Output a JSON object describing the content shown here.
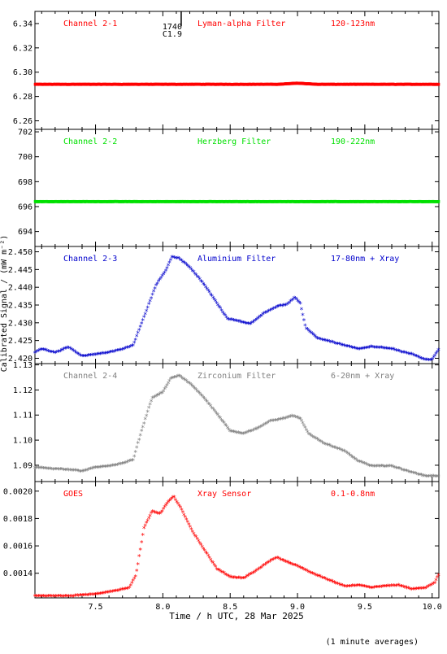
{
  "xlabel": "Time / h UTC, 28 Mar 2025",
  "ylabel": "Calibrated Signal / (mW m⁻²)",
  "footnote": "(1 minute averages)",
  "flare_marker": {
    "time": "1740",
    "class": "C1.9",
    "x": 8.1
  },
  "colors": {
    "red": "#ff0000",
    "green": "#00e000",
    "blue": "#0000cc",
    "grey": "#808080"
  },
  "chart_data": {
    "type": "scatter",
    "x_range": [
      7.05,
      10.05
    ],
    "x_ticks": [
      7.5,
      8.0,
      8.5,
      9.0,
      9.5,
      10.0
    ],
    "x_tick_labels": [
      "7.5",
      "8.0",
      "8.5",
      "9.0",
      "9.5",
      "10.0"
    ],
    "panels": [
      {
        "key": "p1",
        "channel": "Channel 2-1",
        "filter": "Lyman-alpha Filter",
        "band": "120-123nm",
        "color": "#ff0000",
        "ylim": [
          6.253,
          6.35
        ],
        "y_ticks": [
          6.26,
          6.28,
          6.3,
          6.32,
          6.34
        ],
        "y_tick_labels": [
          "6.26",
          "6.28",
          "6.30",
          "6.32",
          "6.34"
        ],
        "points": [
          [
            7.05,
            6.29
          ],
          [
            7.5,
            6.29
          ],
          [
            8.0,
            6.29
          ],
          [
            8.5,
            6.29
          ],
          [
            8.85,
            6.29
          ],
          [
            9.0,
            6.291
          ],
          [
            9.15,
            6.29
          ],
          [
            9.5,
            6.29
          ],
          [
            10.05,
            6.29
          ]
        ]
      },
      {
        "key": "p2",
        "channel": "Channel 2-2",
        "filter": "Herzberg Filter",
        "band": "190-222nm",
        "color": "#00e000",
        "ylim": [
          692.8,
          702.2
        ],
        "y_ticks": [
          694,
          696,
          698,
          700,
          702
        ],
        "y_tick_labels": [
          "694",
          "696",
          "698",
          "700",
          "702"
        ],
        "points": [
          [
            7.05,
            696.4
          ],
          [
            7.5,
            696.4
          ],
          [
            8.0,
            696.4
          ],
          [
            8.5,
            696.4
          ],
          [
            9.0,
            696.4
          ],
          [
            9.5,
            696.4
          ],
          [
            10.05,
            696.4
          ]
        ]
      },
      {
        "key": "p3",
        "channel": "Channel 2-3",
        "filter": "Aluminium Filter",
        "band": "17-80nm + Xray",
        "color": "#0000cc",
        "ylim": [
          2.4185,
          2.4515
        ],
        "y_ticks": [
          2.42,
          2.425,
          2.43,
          2.435,
          2.44,
          2.445,
          2.45
        ],
        "y_tick_labels": [
          "2.420",
          "2.425",
          "2.430",
          "2.435",
          "2.440",
          "2.445",
          "2.450"
        ],
        "points": [
          [
            7.05,
            2.4215
          ],
          [
            7.1,
            2.4225
          ],
          [
            7.2,
            2.4215
          ],
          [
            7.3,
            2.423
          ],
          [
            7.4,
            2.4205
          ],
          [
            7.5,
            2.421
          ],
          [
            7.6,
            2.4215
          ],
          [
            7.7,
            2.4225
          ],
          [
            7.78,
            2.4235
          ],
          [
            7.82,
            2.4275
          ],
          [
            7.88,
            2.4335
          ],
          [
            7.95,
            2.4405
          ],
          [
            8.02,
            2.4445
          ],
          [
            8.07,
            2.4485
          ],
          [
            8.12,
            2.448
          ],
          [
            8.2,
            2.4455
          ],
          [
            8.3,
            2.441
          ],
          [
            8.4,
            2.4355
          ],
          [
            8.48,
            2.431
          ],
          [
            8.55,
            2.4305
          ],
          [
            8.65,
            2.4295
          ],
          [
            8.75,
            2.4325
          ],
          [
            8.85,
            2.4345
          ],
          [
            8.92,
            2.435
          ],
          [
            8.98,
            2.437
          ],
          [
            9.02,
            2.4355
          ],
          [
            9.06,
            2.4285
          ],
          [
            9.15,
            2.4255
          ],
          [
            9.3,
            2.424
          ],
          [
            9.45,
            2.4225
          ],
          [
            9.55,
            2.4232
          ],
          [
            9.7,
            2.4225
          ],
          [
            9.85,
            2.421
          ],
          [
            9.95,
            2.4195
          ],
          [
            10.0,
            2.4195
          ],
          [
            10.05,
            2.4225
          ]
        ]
      },
      {
        "key": "p4",
        "channel": "Channel 2-4",
        "filter": "Zirconium Filter",
        "band": "6-20nm + Xray",
        "color": "#808080",
        "ylim": [
          1.0835,
          1.1305
        ],
        "y_ticks": [
          1.09,
          1.1,
          1.11,
          1.12,
          1.13
        ],
        "y_tick_labels": [
          "1.09",
          "1.10",
          "1.11",
          "1.12",
          "1.13"
        ],
        "points": [
          [
            7.05,
            1.089
          ],
          [
            7.15,
            1.0885
          ],
          [
            7.3,
            1.088
          ],
          [
            7.4,
            1.0875
          ],
          [
            7.5,
            1.089
          ],
          [
            7.6,
            1.0895
          ],
          [
            7.7,
            1.0905
          ],
          [
            7.78,
            1.092
          ],
          [
            7.82,
            1.0995
          ],
          [
            7.87,
            1.1085
          ],
          [
            7.92,
            1.1165
          ],
          [
            8.0,
            1.119
          ],
          [
            8.06,
            1.1245
          ],
          [
            8.12,
            1.1255
          ],
          [
            8.2,
            1.1225
          ],
          [
            8.3,
            1.117
          ],
          [
            8.4,
            1.1105
          ],
          [
            8.5,
            1.1035
          ],
          [
            8.6,
            1.1025
          ],
          [
            8.7,
            1.1045
          ],
          [
            8.8,
            1.1075
          ],
          [
            8.9,
            1.1085
          ],
          [
            8.96,
            1.1095
          ],
          [
            9.02,
            1.1085
          ],
          [
            9.08,
            1.1025
          ],
          [
            9.2,
            1.0985
          ],
          [
            9.35,
            1.0955
          ],
          [
            9.45,
            1.0915
          ],
          [
            9.55,
            1.0895
          ],
          [
            9.7,
            1.0895
          ],
          [
            9.85,
            1.087
          ],
          [
            9.95,
            1.0855
          ],
          [
            10.05,
            1.0855
          ]
        ]
      },
      {
        "key": "p5",
        "channel": "GOES",
        "filter": "Xray Sensor",
        "band": "0.1-0.8nm",
        "color": "#ff0000",
        "ylim": [
          0.00122,
          0.00207
        ],
        "y_ticks": [
          0.0014,
          0.0016,
          0.0018,
          0.002
        ],
        "y_tick_labels": [
          "0.0014",
          "0.0016",
          "0.0018",
          "0.0020"
        ],
        "points": [
          [
            7.05,
            0.00123
          ],
          [
            7.3,
            0.00123
          ],
          [
            7.45,
            0.00124
          ],
          [
            7.55,
            0.00125
          ],
          [
            7.65,
            0.00127
          ],
          [
            7.75,
            0.00129
          ],
          [
            7.8,
            0.00138
          ],
          [
            7.86,
            0.00173
          ],
          [
            7.92,
            0.00185
          ],
          [
            7.98,
            0.00183
          ],
          [
            8.04,
            0.00192
          ],
          [
            8.08,
            0.00196
          ],
          [
            8.14,
            0.00186
          ],
          [
            8.22,
            0.0017
          ],
          [
            8.3,
            0.00158
          ],
          [
            8.4,
            0.00143
          ],
          [
            8.5,
            0.00137
          ],
          [
            8.6,
            0.00136
          ],
          [
            8.7,
            0.00142
          ],
          [
            8.8,
            0.00149
          ],
          [
            8.85,
            0.00151
          ],
          [
            8.92,
            0.00148
          ],
          [
            9.0,
            0.00145
          ],
          [
            9.1,
            0.0014
          ],
          [
            9.25,
            0.00134
          ],
          [
            9.35,
            0.0013
          ],
          [
            9.45,
            0.00131
          ],
          [
            9.55,
            0.00129
          ],
          [
            9.62,
            0.0013
          ],
          [
            9.75,
            0.00131
          ],
          [
            9.85,
            0.00128
          ],
          [
            9.95,
            0.00129
          ],
          [
            10.02,
            0.00133
          ],
          [
            10.05,
            0.00139
          ]
        ]
      }
    ]
  }
}
